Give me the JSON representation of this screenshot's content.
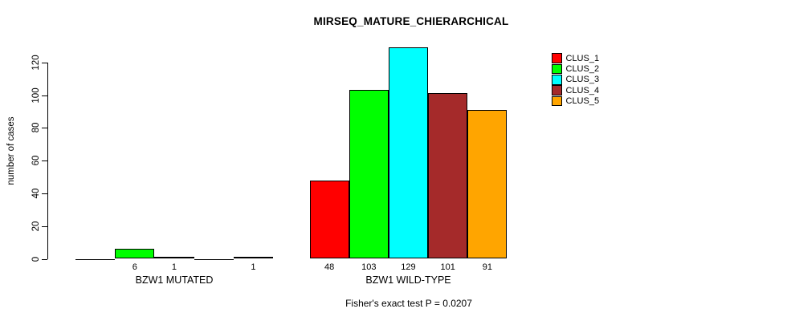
{
  "chart_data": {
    "type": "bar",
    "title": "MIRSEQ_MATURE_CHIERARCHICAL",
    "ylabel": "number of cases",
    "xlabel": "",
    "yticks": [
      0,
      20,
      40,
      60,
      80,
      100,
      120
    ],
    "ylim": [
      0,
      130
    ],
    "grid": false,
    "legend_position": "right-outside",
    "categories": [
      "BZW1 MUTATED",
      "BZW1 WILD-TYPE"
    ],
    "groups": [
      {
        "label": "BZW1 MUTATED",
        "values": [
          0,
          6,
          1,
          0,
          1
        ]
      },
      {
        "label": "BZW1 WILD-TYPE",
        "values": [
          48,
          103,
          129,
          101,
          91
        ]
      }
    ],
    "series": [
      {
        "name": "CLUS_1",
        "color": "#FF0000"
      },
      {
        "name": "CLUS_2",
        "color": "#00FF00"
      },
      {
        "name": "CLUS_3",
        "color": "#00FFFF"
      },
      {
        "name": "CLUS_4",
        "color": "#A52A2A"
      },
      {
        "name": "CLUS_5",
        "color": "#FFA500"
      }
    ],
    "value_labels_shown_for_nonzero_only": true,
    "annotation": "Fisher's exact test P = 0.0207",
    "axis_color": "#000000",
    "bar_border_color": "#000000",
    "background_color": "#FFFFFF"
  }
}
